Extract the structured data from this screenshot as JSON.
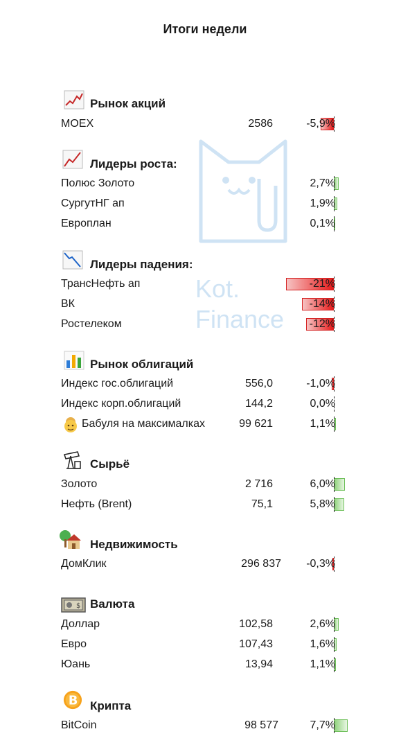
{
  "page": {
    "title": "Итоги недели"
  },
  "watermark": {
    "line1": "Kot.",
    "line2": "Finance"
  },
  "colors": {
    "positive": "#6cbf58",
    "negative": "#e81b1b",
    "watermark": "#cfe3f4"
  },
  "sections": [
    {
      "title": "Рынок акций",
      "icon": "stock-chart-icon",
      "rows": [
        {
          "label": "MOEX",
          "value": "2586",
          "change": "-5,9%",
          "pct": -5.9
        }
      ]
    },
    {
      "title": "Лидеры роста:",
      "icon": "chart-up-icon",
      "rows": [
        {
          "label": "Полюс Золото",
          "value": "",
          "change": "2,7%",
          "pct": 2.7
        },
        {
          "label": "СургутНГ ап",
          "value": "",
          "change": "1,9%",
          "pct": 1.9
        },
        {
          "label": "Европлан",
          "value": "",
          "change": "0,1%",
          "pct": 0.1
        }
      ]
    },
    {
      "title": "Лидеры падения:",
      "icon": "chart-down-icon",
      "rows": [
        {
          "label": "ТрансНефть ап",
          "value": "",
          "change": "-21%",
          "pct": -21
        },
        {
          "label": "ВК",
          "value": "",
          "change": "-14%",
          "pct": -14
        },
        {
          "label": "Ростелеком",
          "value": "",
          "change": "-12%",
          "pct": -12
        }
      ]
    },
    {
      "title": "Рынок облигаций",
      "icon": "bar-chart-icon",
      "rows": [
        {
          "label": "Индекс гос.облигаций",
          "value": "556,0",
          "change": "-1,0%",
          "pct": -1.0
        },
        {
          "label": "Индекс корп.облигаций",
          "value": "144,2",
          "change": "0,0%",
          "pct": 0.0
        },
        {
          "label": "Бабуля на максималках",
          "value": "99 621",
          "change": "1,1%",
          "pct": 1.1,
          "icon": "grandma-icon"
        }
      ]
    },
    {
      "title": "Сырьё",
      "icon": "oil-pump-icon",
      "rows": [
        {
          "label": "Золото",
          "value": "2 716",
          "change": "6,0%",
          "pct": 6.0
        },
        {
          "label": "Нефть (Brent)",
          "value": "75,1",
          "change": "5,8%",
          "pct": 5.8
        }
      ]
    },
    {
      "title": "Недвижимость",
      "icon": "house-icon",
      "rows": [
        {
          "label": "ДомКлик",
          "value": "296 837",
          "change": "-0,3%",
          "pct": -0.3
        }
      ]
    },
    {
      "title": "Валюта",
      "icon": "banknote-icon",
      "rows": [
        {
          "label": "Доллар",
          "value": "102,58",
          "change": "2,6%",
          "pct": 2.6
        },
        {
          "label": "Евро",
          "value": "107,43",
          "change": "1,6%",
          "pct": 1.6
        },
        {
          "label": "Юань",
          "value": "13,94",
          "change": "1,1%",
          "pct": 1.1
        }
      ]
    },
    {
      "title": "Крипта",
      "icon": "bitcoin-icon",
      "rows": [
        {
          "label": "BitCoin",
          "value": "98 577",
          "change": "7,7%",
          "pct": 7.7
        }
      ]
    }
  ]
}
